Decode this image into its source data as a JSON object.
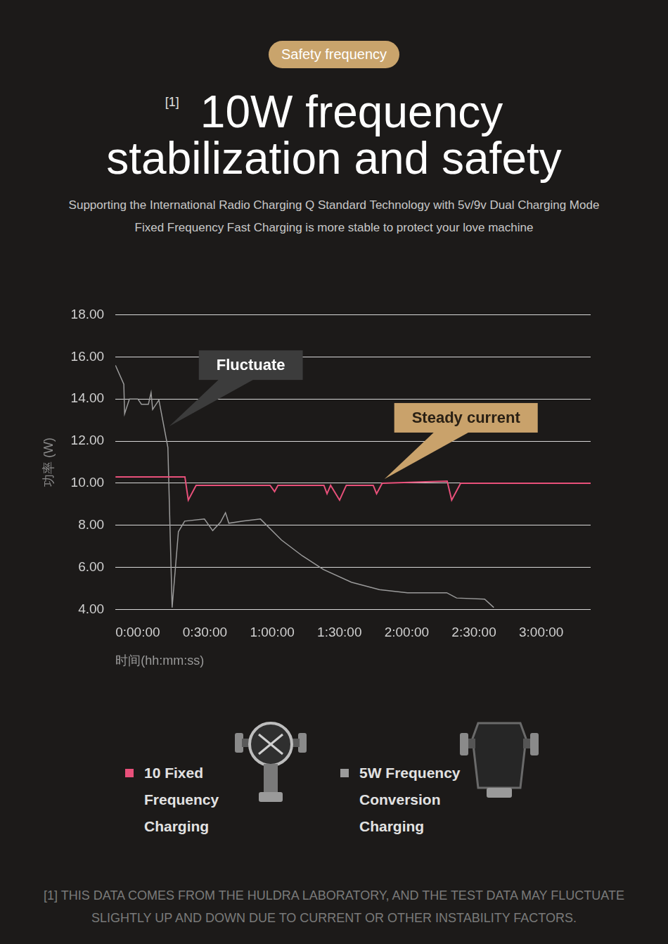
{
  "header": {
    "badge": "Safety frequency",
    "title_marker": "[1]",
    "title": "10W frequency stabilization and safety",
    "subtitle": [
      "Supporting the International Radio Charging Q Standard Technology with 5v/9v Dual Charging Mode",
      "Fixed Frequency Fast Charging is more stable to protect your love machine"
    ]
  },
  "chart_data": {
    "type": "line",
    "y_label": "功率 (W)",
    "x_label": "时间(hh:mm:ss)",
    "xlim": [
      0,
      212
    ],
    "xticks": [
      {
        "value": 0,
        "label": "0:00:00"
      },
      {
        "value": 30,
        "label": "0:30:00"
      },
      {
        "value": 60,
        "label": "1:00:00"
      },
      {
        "value": 90,
        "label": "1:30:00"
      },
      {
        "value": 120,
        "label": "2:00:00"
      },
      {
        "value": 150,
        "label": "2:30:00"
      },
      {
        "value": 180,
        "label": "3:00:00"
      }
    ],
    "ylim": [
      4,
      18
    ],
    "yticks": [
      {
        "value": 4,
        "label": "4.00"
      },
      {
        "value": 6,
        "label": "6.00"
      },
      {
        "value": 8,
        "label": "8.00"
      },
      {
        "value": 10,
        "label": "10.00"
      },
      {
        "value": 12,
        "label": "12.00"
      },
      {
        "value": 14,
        "label": "14.00"
      },
      {
        "value": 16,
        "label": "16.00"
      },
      {
        "value": 18,
        "label": "18.00"
      }
    ],
    "grid": true,
    "legend": "bottom",
    "series": [
      {
        "name": "10 Fixed Frequency Charging",
        "color": "#e8507a",
        "x": [
          0,
          31,
          32.5,
          36,
          69,
          71,
          72.5,
          93,
          94.4,
          96,
          100,
          103,
          115,
          116.5,
          119,
          148,
          150,
          154,
          212
        ],
        "values": [
          10.3,
          10.3,
          9.2,
          9.9,
          9.9,
          9.6,
          9.9,
          9.9,
          9.5,
          9.9,
          9.2,
          9.9,
          9.9,
          9.5,
          10.0,
          10.1,
          9.2,
          10.0,
          10.0
        ]
      },
      {
        "name": "5W Frequency Conversion Charging",
        "color": "#9b9b9b",
        "x": [
          0,
          3.75,
          4.1,
          6.25,
          10,
          11.6,
          14.7,
          15.9,
          16.6,
          19.4,
          23.4,
          25.3,
          28.1,
          30.9,
          39.7,
          43.4,
          46.9,
          49.1,
          50.6,
          56.9,
          64.7,
          74.1,
          83.4,
          92.8,
          105.3,
          117.8,
          130.3,
          147.8,
          152.2,
          164.7,
          168.8
        ],
        "values": [
          15.6,
          14.7,
          13.3,
          14.0,
          14.0,
          13.75,
          13.75,
          14.3,
          13.5,
          13.95,
          11.7,
          4.1,
          7.7,
          8.2,
          8.3,
          7.75,
          8.15,
          8.6,
          8.1,
          8.2,
          8.3,
          7.3,
          6.55,
          5.9,
          5.3,
          4.95,
          4.8,
          4.8,
          4.55,
          4.5,
          4.1
        ]
      }
    ],
    "annotations": [
      {
        "text": "Fluctuate",
        "x": 24,
        "y": 12.7
      },
      {
        "text": "Steady current",
        "x": 120,
        "y": 10.2
      }
    ]
  },
  "footnote": "[1] THIS DATA COMES FROM THE HULDRA LABORATORY, AND THE TEST DATA MAY FLUCTUATE SLIGHTLY UP AND DOWN DUE TO CURRENT OR OTHER INSTABILITY FACTORS."
}
